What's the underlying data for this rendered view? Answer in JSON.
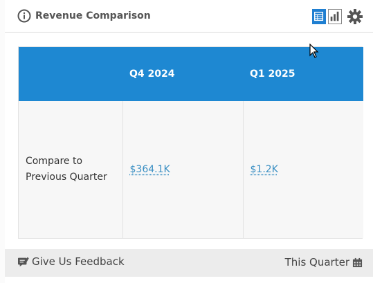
{
  "header": {
    "title": "Revenue Comparison",
    "icons": {
      "info": "info-icon",
      "table_view": "table-view-icon",
      "chart_view": "bar-chart-icon",
      "settings": "gear-icon"
    },
    "accent_color": "#1f7fd1"
  },
  "table": {
    "header_color": "#1e88d2",
    "columns": [
      "",
      "Q4 2024",
      "Q1 2025"
    ],
    "rows": [
      {
        "label": "Compare to Previous Quarter",
        "values": [
          "$364.1K",
          "$1.2K"
        ]
      }
    ]
  },
  "footer": {
    "feedback_label": "Give Us Feedback",
    "period_label": "This Quarter",
    "icons": {
      "feedback": "feedback-icon",
      "period": "calendar-icon"
    }
  }
}
